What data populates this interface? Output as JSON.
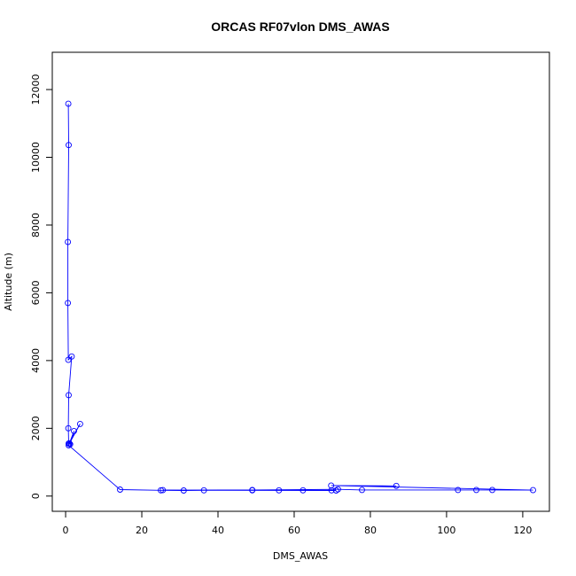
{
  "chart_data": {
    "type": "scatter",
    "title": "ORCAS RF07vlon DMS_AWAS",
    "xlabel": "DMS_AWAS",
    "ylabel": "Altitude (m)",
    "xlim": [
      -3.5,
      127
    ],
    "ylim": [
      -450,
      13100
    ],
    "xticks": [
      0,
      20,
      40,
      60,
      80,
      100,
      120
    ],
    "yticks": [
      0,
      2000,
      4000,
      6000,
      8000,
      10000,
      12000
    ],
    "frame": true,
    "grid": false,
    "series": [
      {
        "color": "#0000ff",
        "marker": "open-circle",
        "connected": true,
        "x": [
          0.7,
          0.8,
          0.6,
          0.6,
          0.7,
          1.6,
          0.8,
          0.7,
          0.8,
          3.8,
          1.0,
          1.2,
          2.2,
          0.8,
          14.3,
          25.0,
          31.0,
          36.3,
          49.0,
          56.0,
          62.3,
          69.8,
          71.0,
          25.5,
          49.0,
          71.5,
          77.8,
          103.0,
          107.8,
          112.0,
          122.7,
          69.7,
          86.8
        ],
        "y": [
          11580,
          10360,
          7500,
          5700,
          4020,
          4120,
          2980,
          2000,
          1550,
          2130,
          1550,
          1530,
          1920,
          1500,
          190,
          170,
          165,
          170,
          170,
          170,
          170,
          170,
          165,
          175,
          180,
          200,
          180,
          180,
          180,
          180,
          175,
          310,
          300
        ]
      }
    ]
  }
}
